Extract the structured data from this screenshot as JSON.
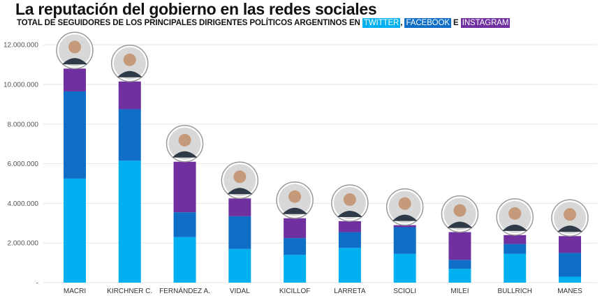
{
  "title": "La reputación del gobierno en las redes sociales",
  "subtitle": {
    "prefix": "TOTAL DE SEGUIDORES DE LOS PRINCIPALES DIRIGENTES POLÍTICOS ARGENTINOS EN",
    "twitter": "TWITTER",
    "sep1": ",",
    "facebook": "FACEBOOK",
    "sep2": "E",
    "instagram": "INSTAGRAM"
  },
  "colors": {
    "twitter": "#00b0f0",
    "facebook": "#0f6fc6",
    "instagram": "#7030a0",
    "grid": "#e6e6e6",
    "avatar_border": "#9a9a9a"
  },
  "chart_data": {
    "type": "bar",
    "stacked": true,
    "categories": [
      "MACRI",
      "KIRCHNER C.",
      "FERNÁNDEZ A.",
      "VIDAL",
      "KICILLOF",
      "LARRETA",
      "SCIOLI",
      "MILEI",
      "BULLRICH",
      "MANES"
    ],
    "series": [
      {
        "key": "twitter",
        "values": [
          5250000,
          6150000,
          2300000,
          1700000,
          1400000,
          1750000,
          1450000,
          700000,
          1450000,
          300000
        ]
      },
      {
        "key": "facebook",
        "values": [
          4400000,
          2600000,
          1250000,
          1650000,
          850000,
          800000,
          1350000,
          450000,
          500000,
          1200000
        ]
      },
      {
        "key": "instagram",
        "values": [
          1150000,
          1400000,
          2550000,
          900000,
          1000000,
          550000,
          100000,
          1400000,
          450000,
          850000
        ]
      }
    ],
    "ylim": [
      0,
      12500000
    ],
    "yticks": [
      0,
      2000000,
      4000000,
      6000000,
      8000000,
      10000000,
      12000000
    ],
    "ytick_labels": [
      "-",
      "2.000.000",
      "4.000.000",
      "6.000.000",
      "8.000.000",
      "10.000.000",
      "12.000.000"
    ],
    "grid": true,
    "legend": "none"
  }
}
